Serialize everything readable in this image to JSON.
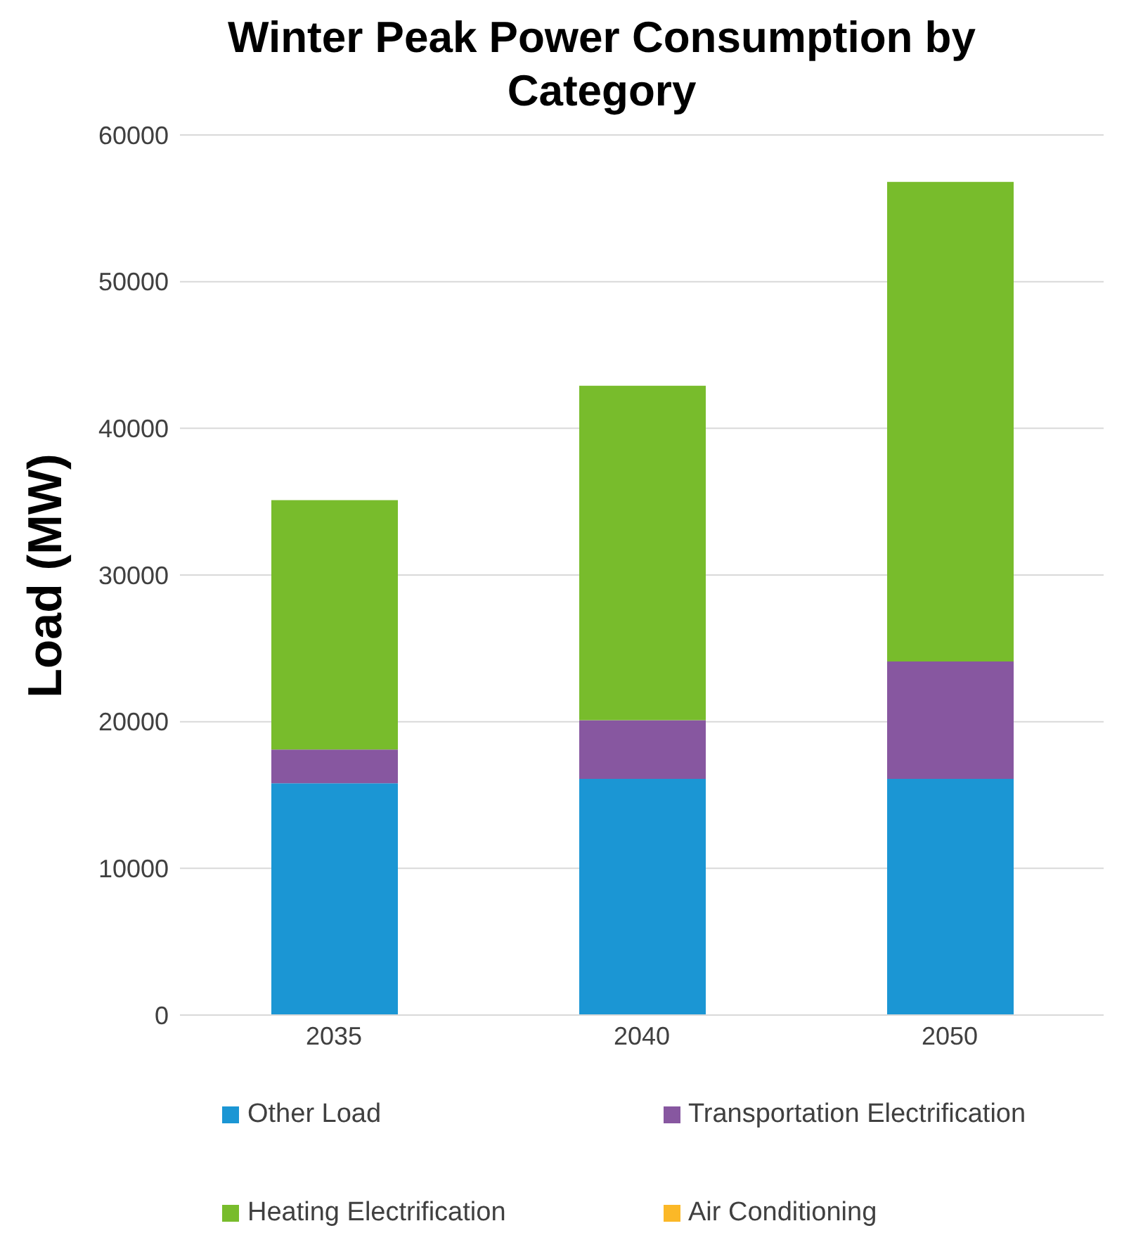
{
  "chart_data": {
    "type": "bar",
    "title": "Winter Peak Power Consumption by Category",
    "ylabel": "Load (MW)",
    "categories": [
      "2035",
      "2040",
      "2050"
    ],
    "stacked": true,
    "ylim": [
      0,
      60000
    ],
    "yticks": [
      0,
      10000,
      20000,
      30000,
      40000,
      50000,
      60000
    ],
    "grid": "y",
    "legend": "bottom",
    "series": [
      {
        "name": "Other Load",
        "color": "#1b96d4",
        "values": [
          15800,
          16100,
          16100
        ]
      },
      {
        "name": "Transportation Electrification",
        "color": "#8757a0",
        "values": [
          2300,
          4000,
          8000
        ]
      },
      {
        "name": "Heating Electrification",
        "color": "#78bc2c",
        "values": [
          17000,
          22800,
          32700
        ]
      },
      {
        "name": "Air Conditioning",
        "color": "#fbb827",
        "values": [
          0,
          0,
          0
        ]
      }
    ]
  }
}
